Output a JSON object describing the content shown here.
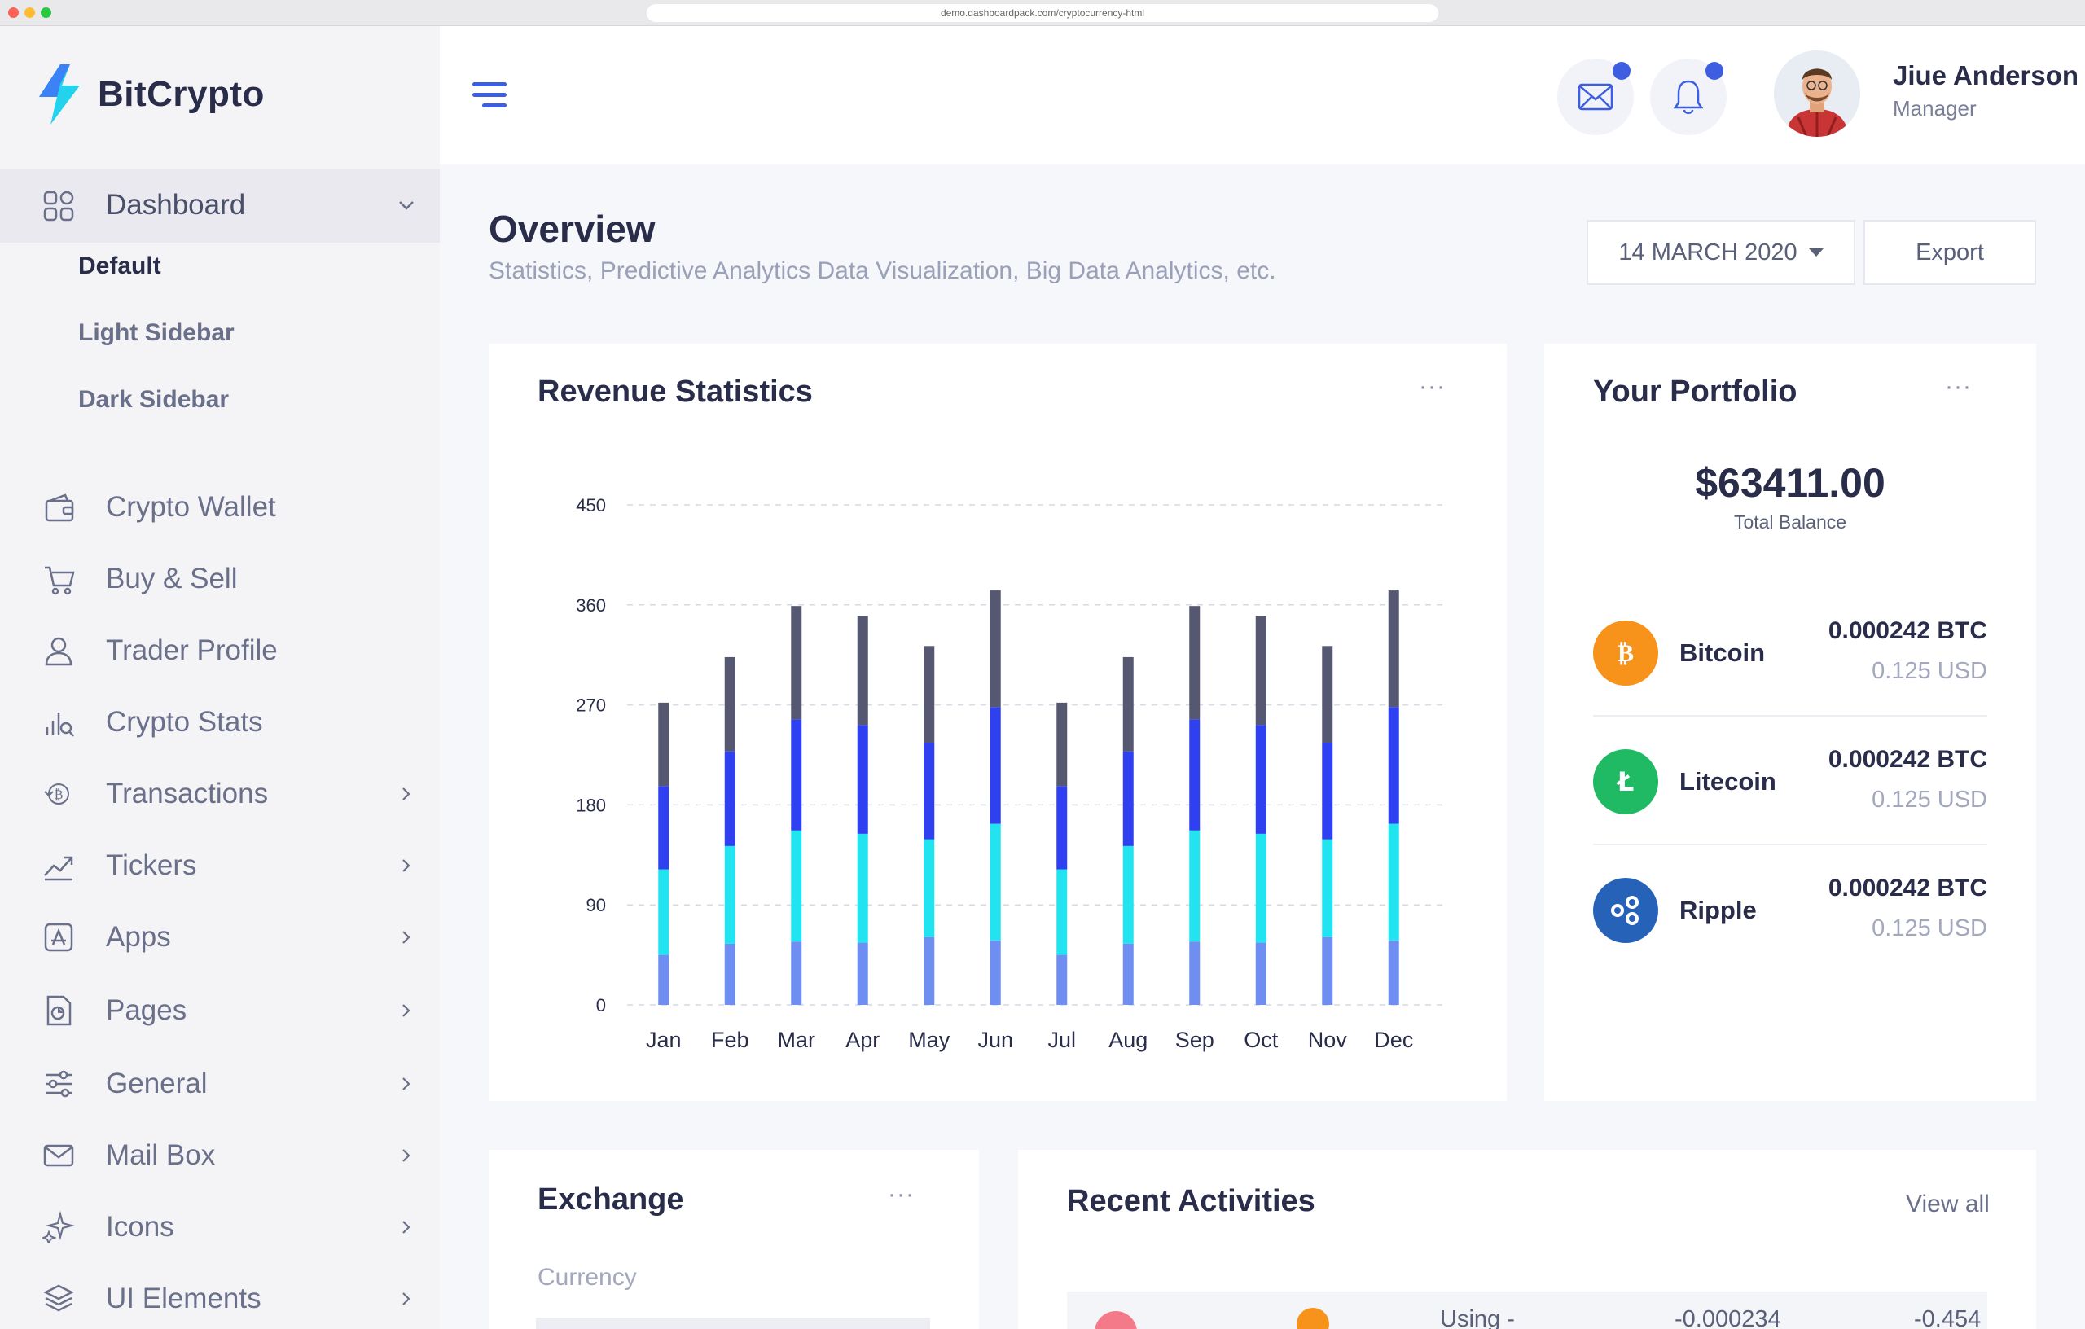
{
  "browser": {
    "url": "demo.dashboardpack.com/cryptocurrency-html"
  },
  "brand": {
    "name": "BitCrypto"
  },
  "sidebar": {
    "dashboard_label": "Dashboard",
    "sub_items": [
      {
        "label": "Default",
        "active": true
      },
      {
        "label": "Light Sidebar",
        "active": false
      },
      {
        "label": "Dark Sidebar",
        "active": false
      }
    ],
    "items": [
      {
        "label": "Crypto Wallet",
        "icon": "wallet-icon",
        "has_submenu": false
      },
      {
        "label": "Buy & Sell",
        "icon": "cart-icon",
        "has_submenu": false
      },
      {
        "label": "Trader Profile",
        "icon": "user-icon",
        "has_submenu": false
      },
      {
        "label": "Crypto Stats",
        "icon": "stats-icon",
        "has_submenu": false
      },
      {
        "label": "Transactions",
        "icon": "bitcoin-transfer-icon",
        "has_submenu": true
      },
      {
        "label": "Tickers",
        "icon": "trend-up-icon",
        "has_submenu": true
      },
      {
        "label": "Apps",
        "icon": "app-store-icon",
        "has_submenu": true
      },
      {
        "label": "Pages",
        "icon": "page-icon",
        "has_submenu": true
      },
      {
        "label": "General",
        "icon": "sliders-icon",
        "has_submenu": true
      },
      {
        "label": "Mail Box",
        "icon": "mail-icon",
        "has_submenu": true
      },
      {
        "label": "Icons",
        "icon": "sparkle-icon",
        "has_submenu": true
      },
      {
        "label": "UI Elements",
        "icon": "layers-icon",
        "has_submenu": true
      }
    ]
  },
  "header": {
    "user_name": "Jiue Anderson",
    "user_role": "Manager",
    "badge_color": "#3d5ee1"
  },
  "overview": {
    "title": "Overview",
    "subtitle": "Statistics, Predictive Analytics Data Visualization, Big Data Analytics, etc.",
    "date_label": "14 MARCH 2020",
    "export_label": "Export"
  },
  "revenue": {
    "title": "Revenue Statistics",
    "more": "···"
  },
  "chart_data": {
    "type": "bar",
    "stacked": true,
    "categories": [
      "Jan",
      "Feb",
      "Mar",
      "Apr",
      "May",
      "Jun",
      "Jul",
      "Aug",
      "Sep",
      "Oct",
      "Nov",
      "Dec"
    ],
    "y_ticks": [
      0,
      90,
      180,
      270,
      360,
      450
    ],
    "ylim": [
      0,
      450
    ],
    "grid": true,
    "series": [
      {
        "color": "#6f8ef2",
        "values": [
          45,
          55,
          57,
          56,
          61,
          58,
          45,
          55,
          57,
          56,
          61,
          58
        ]
      },
      {
        "color": "#22e3f0",
        "values": [
          77,
          88,
          100,
          98,
          88,
          105,
          77,
          88,
          100,
          98,
          88,
          105
        ]
      },
      {
        "color": "#2e40f0",
        "values": [
          75,
          85,
          100,
          98,
          87,
          105,
          75,
          85,
          100,
          98,
          87,
          105
        ]
      },
      {
        "color": "#565872",
        "values": [
          75,
          85,
          102,
          98,
          87,
          105,
          75,
          85,
          102,
          98,
          87,
          105
        ]
      }
    ]
  },
  "portfolio": {
    "title": "Your Portfolio",
    "more": "···",
    "balance": "$63411.00",
    "balance_label": "Total Balance",
    "coins": [
      {
        "name": "Bitcoin",
        "btc": "0.000242 BTC",
        "usd": "0.125 USD",
        "color": "#f7931a",
        "icon": "bitcoin-icon"
      },
      {
        "name": "Litecoin",
        "btc": "0.000242 BTC",
        "usd": "0.125 USD",
        "color": "#1fba63",
        "icon": "litecoin-icon"
      },
      {
        "name": "Ripple",
        "btc": "0.000242 BTC",
        "usd": "0.125 USD",
        "color": "#2762b9",
        "icon": "ripple-icon"
      }
    ]
  },
  "exchange": {
    "title": "Exchange",
    "more": "···",
    "currency_label": "Currency"
  },
  "activities": {
    "title": "Recent Activities",
    "view_all": "View all",
    "row_partial": {
      "label": "Using -",
      "amount1": "-0.000234",
      "amount2": "-0.454"
    }
  }
}
